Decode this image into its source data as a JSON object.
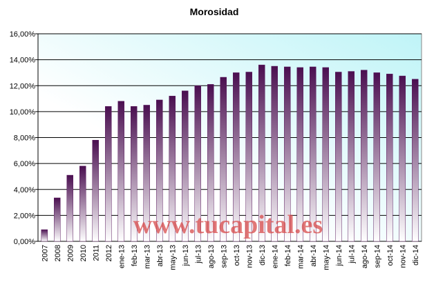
{
  "chart_data": {
    "type": "bar",
    "title": "Morosidad",
    "categories": [
      "2007",
      "2008",
      "2009",
      "2010",
      "2011",
      "2012",
      "ene-13",
      "feb-13",
      "mar-13",
      "abr-13",
      "may-13",
      "jun-13",
      "jul-13",
      "ago-13",
      "sep-13",
      "oct-13",
      "nov-13",
      "dic-13",
      "ene-14",
      "feb-14",
      "mar-14",
      "abr-14",
      "may-14",
      "jun-14",
      "jul-14",
      "ago-14",
      "sep-14",
      "oct-14",
      "nov-14",
      "dic-14"
    ],
    "values": [
      0.9,
      3.35,
      5.1,
      5.8,
      7.8,
      10.4,
      10.8,
      10.4,
      10.5,
      10.9,
      11.2,
      11.6,
      12.0,
      12.1,
      12.65,
      13.0,
      13.05,
      13.6,
      13.5,
      13.45,
      13.4,
      13.45,
      13.4,
      13.05,
      13.1,
      13.2,
      13.0,
      12.9,
      12.75,
      12.5
    ],
    "color": "#5a1a5e",
    "ylim": [
      0,
      16
    ],
    "yticks": [
      {
        "value": 0,
        "label": "0,00%"
      },
      {
        "value": 2,
        "label": "2,00%"
      },
      {
        "value": 4,
        "label": "4,00%"
      },
      {
        "value": 6,
        "label": "6,00%"
      },
      {
        "value": 8,
        "label": "8,00%"
      },
      {
        "value": 10,
        "label": "10,00%"
      },
      {
        "value": 12,
        "label": "12,00%"
      },
      {
        "value": 14,
        "label": "14,00%"
      },
      {
        "value": 16,
        "label": "16,00%"
      }
    ],
    "grid": true,
    "watermark": "www.tucapital.es"
  }
}
